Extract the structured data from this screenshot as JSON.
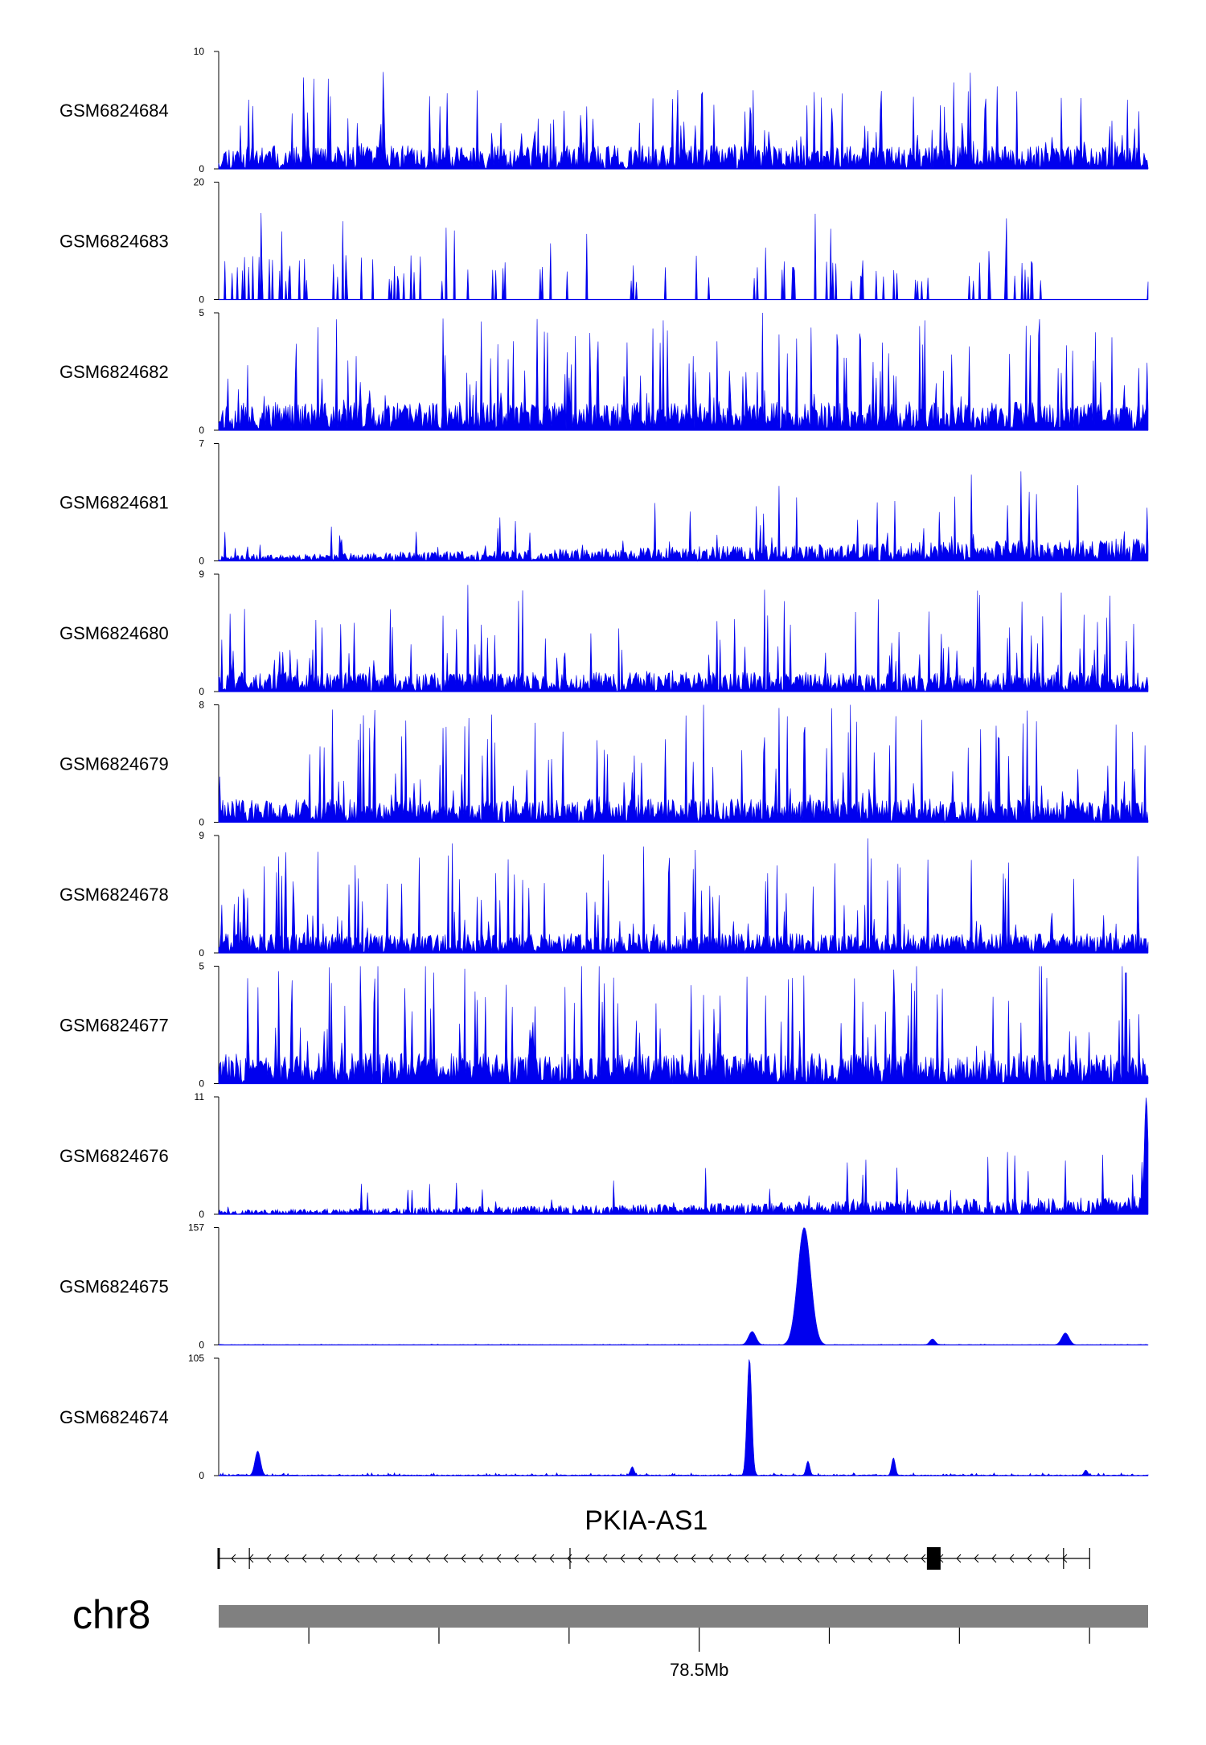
{
  "chart_data": {
    "type": "area",
    "chromosome": "chr8",
    "tracks": [
      {
        "name": "GSM6824684",
        "ymax": 10,
        "ymin": 0,
        "pattern": "noise",
        "base": 2.0,
        "spike": 6.5,
        "seed": 11,
        "gaps": true
      },
      {
        "name": "GSM6824683",
        "ymax": 20,
        "ymin": 0,
        "pattern": "sparse",
        "base": 3.0,
        "spike": 16,
        "seed": 23,
        "gaps": true
      },
      {
        "name": "GSM6824682",
        "ymax": 5,
        "ymin": 0,
        "pattern": "noise",
        "base": 1.2,
        "spike": 4.5,
        "seed": 37,
        "gaps": false
      },
      {
        "name": "GSM6824681",
        "ymax": 7,
        "ymin": 0,
        "pattern": "rising",
        "base": 0.5,
        "spike": 3.5,
        "seed": 41,
        "gaps": true
      },
      {
        "name": "GSM6824680",
        "ymax": 9,
        "ymin": 0,
        "pattern": "noise",
        "base": 1.5,
        "spike": 7.0,
        "seed": 53,
        "gaps": true
      },
      {
        "name": "GSM6824679",
        "ymax": 8,
        "ymin": 0,
        "pattern": "noise",
        "base": 1.6,
        "spike": 7.0,
        "seed": 61,
        "gaps": true
      },
      {
        "name": "GSM6824678",
        "ymax": 9,
        "ymin": 0,
        "pattern": "noise",
        "base": 1.5,
        "spike": 7.5,
        "seed": 71,
        "gaps": true
      },
      {
        "name": "GSM6824677",
        "ymax": 5,
        "ymin": 0,
        "pattern": "noise",
        "base": 1.3,
        "spike": 4.6,
        "seed": 83,
        "gaps": false
      },
      {
        "name": "GSM6824676",
        "ymax": 11,
        "ymin": 0,
        "pattern": "rising",
        "base": 0.6,
        "spike": 4.0,
        "seed": 97,
        "gaps": true,
        "peaks": [
          {
            "pos": 0.998,
            "value": 11
          }
        ]
      },
      {
        "name": "GSM6824675",
        "ymax": 157,
        "ymin": 0,
        "pattern": "peaks",
        "base": 0.5,
        "spike": 2.0,
        "seed": 101,
        "gaps": false,
        "peaks": [
          {
            "pos": 0.574,
            "value": 18,
            "width": 0.004
          },
          {
            "pos": 0.63,
            "value": 157,
            "width": 0.007
          },
          {
            "pos": 0.768,
            "value": 8,
            "width": 0.003
          },
          {
            "pos": 0.911,
            "value": 16,
            "width": 0.004
          }
        ]
      },
      {
        "name": "GSM6824674",
        "ymax": 105,
        "ymin": 0,
        "pattern": "peaks",
        "base": 0.8,
        "spike": 3.0,
        "seed": 113,
        "gaps": false,
        "peaks": [
          {
            "pos": 0.042,
            "value": 22,
            "width": 0.003
          },
          {
            "pos": 0.445,
            "value": 8,
            "width": 0.002
          },
          {
            "pos": 0.571,
            "value": 105,
            "width": 0.0025
          },
          {
            "pos": 0.634,
            "value": 13,
            "width": 0.002
          },
          {
            "pos": 0.726,
            "value": 16,
            "width": 0.002
          },
          {
            "pos": 0.933,
            "value": 5,
            "width": 0.002
          }
        ]
      }
    ],
    "gene": {
      "name": "PKIA-AS1",
      "strand": "-",
      "start_frac": 0.0,
      "end_frac": 0.925,
      "exon_marks": [
        0.0,
        0.033,
        0.378,
        0.909,
        0.925
      ],
      "block_frac": 0.762
    },
    "axis": {
      "label": "78.5Mb",
      "label_frac": 0.517,
      "tick_fracs": [
        0.097,
        0.237,
        0.377,
        0.517,
        0.657,
        0.797,
        0.937
      ]
    }
  },
  "colors": {
    "signal": "#0000ee",
    "ideogram": "#808080",
    "axis": "#000000"
  }
}
